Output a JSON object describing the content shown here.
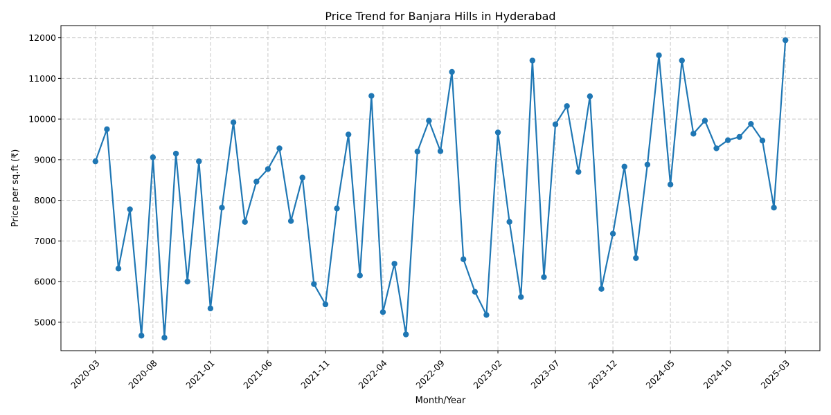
{
  "chart_data": {
    "type": "line",
    "title": "Price Trend for Banjara Hills in Hyderabad",
    "xlabel": "Month/Year",
    "ylabel": "Price per sq.ft (₹)",
    "grid": true,
    "x_ticks": [
      "2020-03",
      "2020-08",
      "2021-01",
      "2021-06",
      "2021-11",
      "2022-04",
      "2022-09",
      "2023-02",
      "2023-07",
      "2023-12",
      "2024-05",
      "2024-10",
      "2025-03"
    ],
    "y_ticks": [
      5000,
      6000,
      7000,
      8000,
      9000,
      10000,
      11000,
      12000
    ],
    "ylim": [
      4300,
      12300
    ],
    "x": [
      "2020-03",
      "2020-04",
      "2020-05",
      "2020-06",
      "2020-07",
      "2020-08",
      "2020-09",
      "2020-10",
      "2020-11",
      "2020-12",
      "2021-01",
      "2021-02",
      "2021-03",
      "2021-04",
      "2021-05",
      "2021-06",
      "2021-07",
      "2021-08",
      "2021-09",
      "2021-10",
      "2021-11",
      "2021-12",
      "2022-01",
      "2022-02",
      "2022-03",
      "2022-04",
      "2022-05",
      "2022-06",
      "2022-07",
      "2022-08",
      "2022-09",
      "2022-10",
      "2022-11",
      "2022-12",
      "2023-01",
      "2023-02",
      "2023-03",
      "2023-04",
      "2023-05",
      "2023-06",
      "2023-07",
      "2023-08",
      "2023-09",
      "2023-10",
      "2023-11",
      "2023-12",
      "2024-01",
      "2024-02",
      "2024-03",
      "2024-04",
      "2024-05",
      "2024-06",
      "2024-07",
      "2024-08",
      "2024-09",
      "2024-10",
      "2024-11",
      "2024-12",
      "2025-01",
      "2025-02",
      "2025-03"
    ],
    "series": [
      {
        "color": "#1f77b4",
        "values": [
          8960,
          9750,
          6320,
          7780,
          4670,
          9060,
          4620,
          9150,
          6000,
          8960,
          5340,
          7820,
          9920,
          7470,
          8460,
          8770,
          9280,
          7490,
          8560,
          5940,
          5440,
          7800,
          9620,
          6150,
          10570,
          5250,
          6440,
          4700,
          9200,
          9960,
          9210,
          11160,
          6550,
          5750,
          5180,
          9670,
          7470,
          5620,
          11440,
          6110,
          9870,
          10320,
          8700,
          10560,
          5820,
          7180,
          8830,
          6580,
          8880,
          11570,
          8390,
          11440,
          9640,
          9960,
          9280,
          9480,
          9560,
          9880,
          9470,
          7820,
          11940
        ]
      }
    ]
  }
}
